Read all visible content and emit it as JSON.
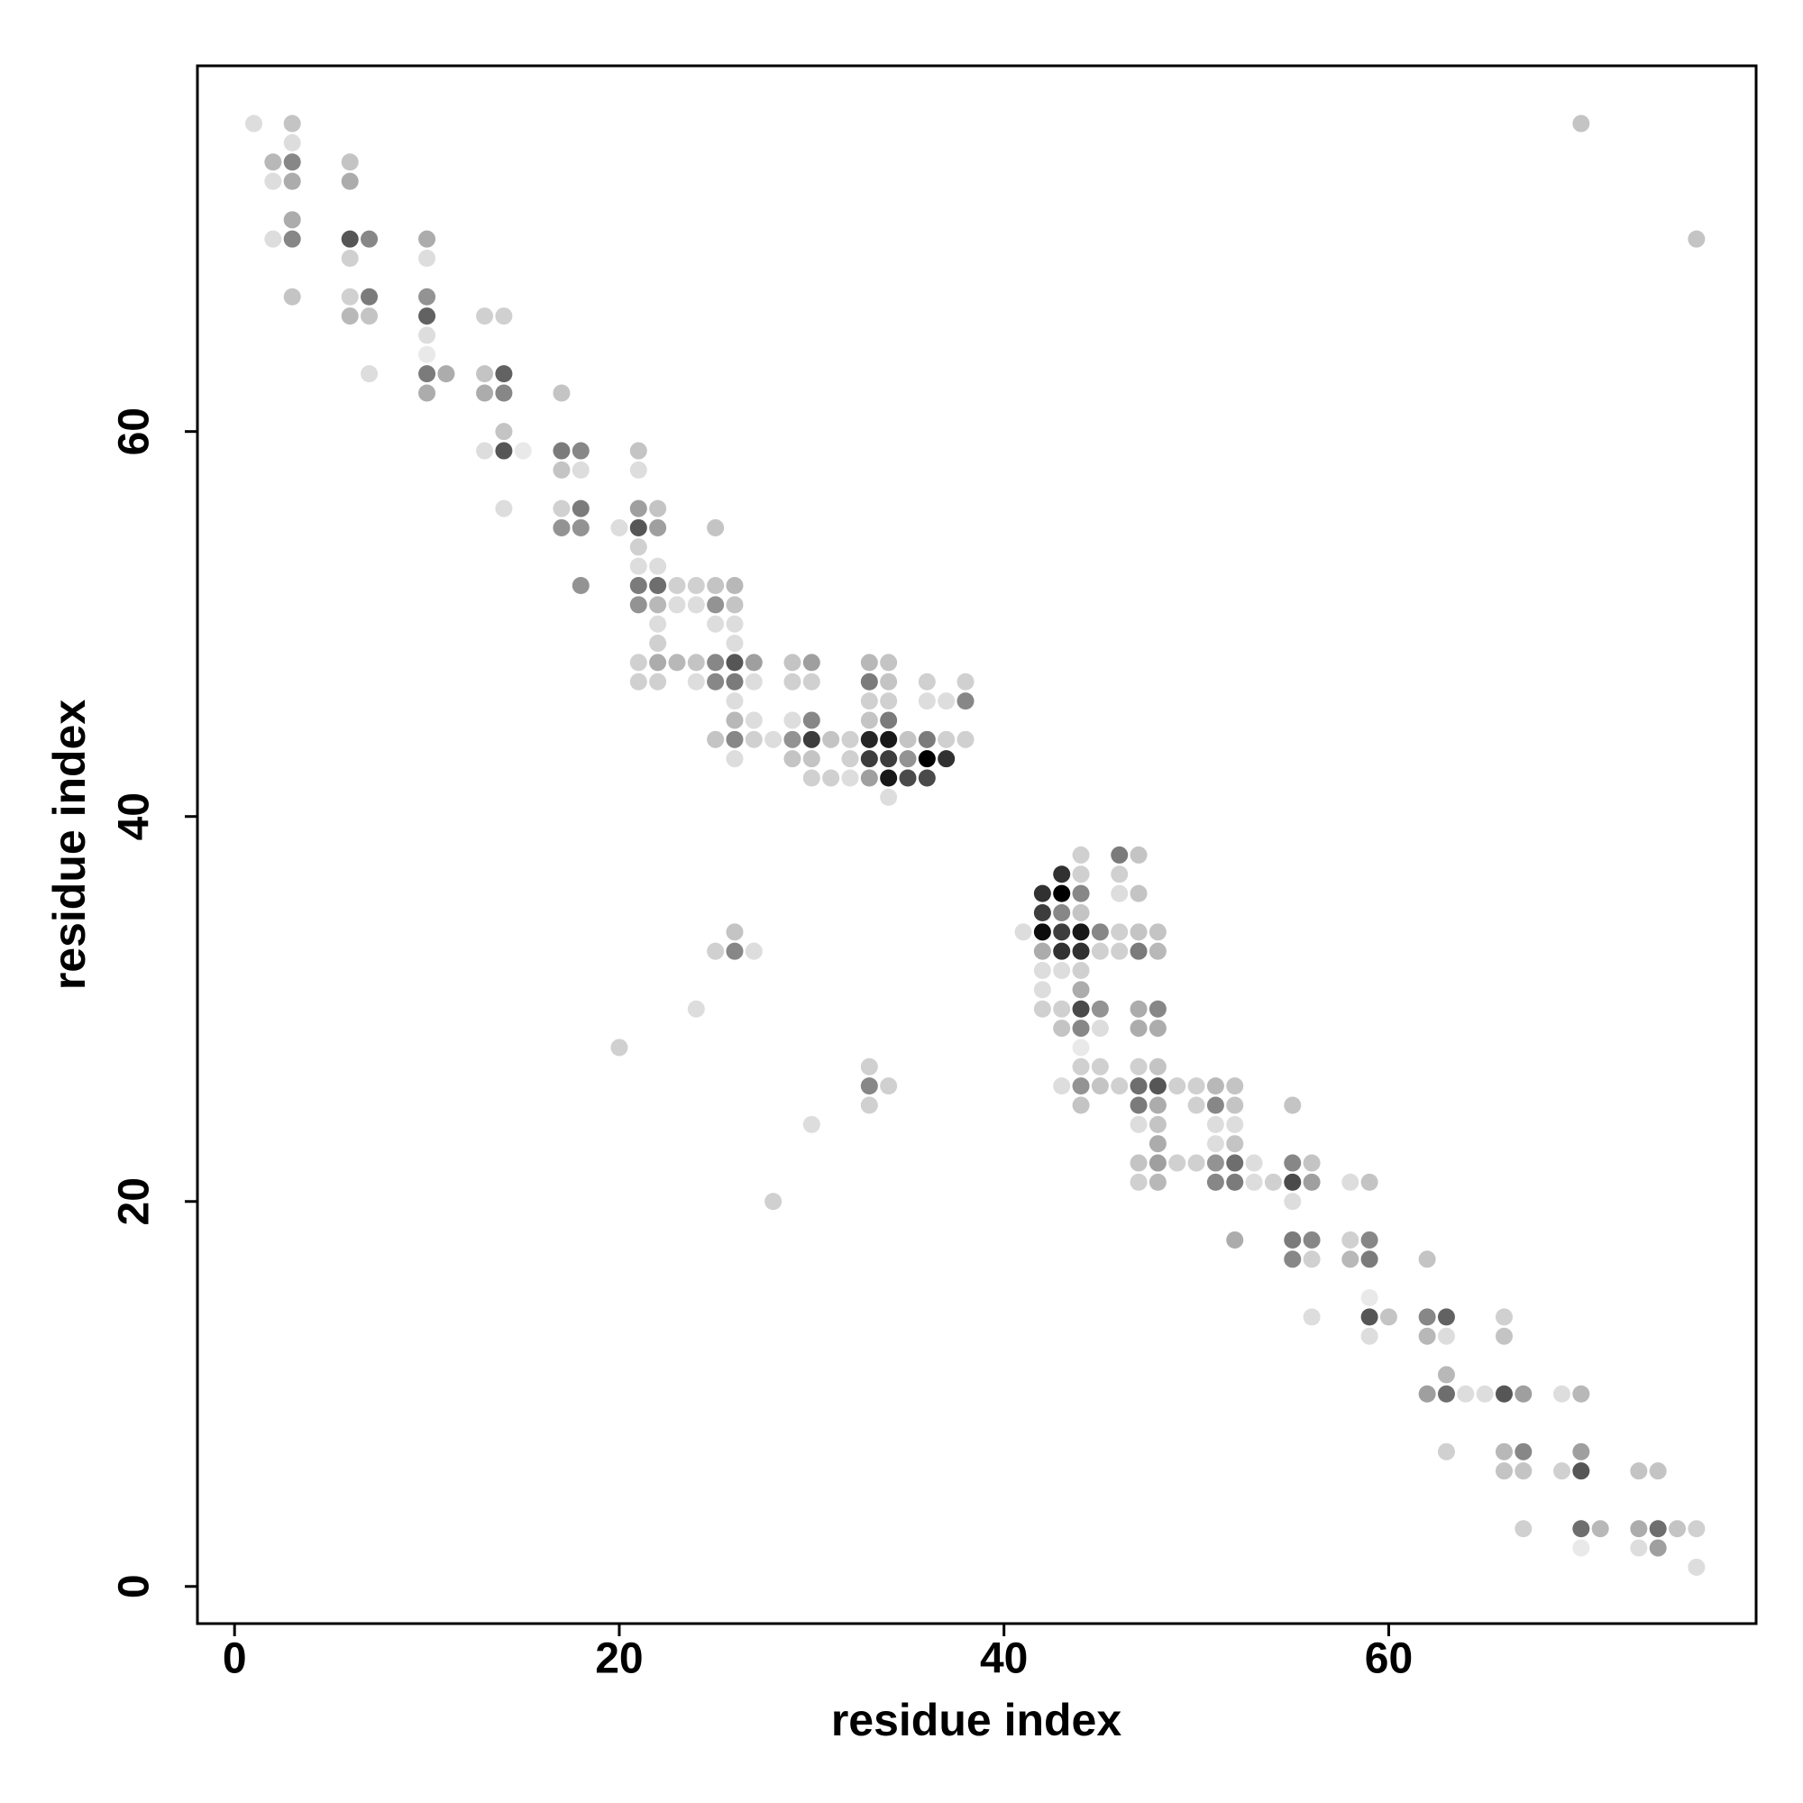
{
  "chart_data": {
    "type": "scatter",
    "xlabel": "residue index",
    "ylabel": "residue index",
    "xlim": [
      -1.93,
      79.1
    ],
    "ylim": [
      -1.93,
      79.0
    ],
    "xticks": [
      0,
      20,
      40,
      60
    ],
    "yticks": [
      0,
      20,
      40,
      60
    ],
    "color": "#000000",
    "x": [
      1,
      3,
      70,
      3,
      2,
      3,
      6,
      2,
      3,
      6,
      3,
      2,
      3,
      6,
      7,
      10,
      76,
      6,
      10,
      3,
      6,
      7,
      10,
      6,
      7,
      10,
      13,
      14,
      10,
      10,
      7,
      10,
      11,
      13,
      14,
      10,
      13,
      14,
      17,
      14,
      13,
      14,
      15,
      17,
      18,
      21,
      17,
      18,
      21,
      14,
      17,
      18,
      21,
      22,
      17,
      18,
      20,
      21,
      22,
      25,
      21,
      21,
      22,
      18,
      21,
      22,
      23,
      24,
      25,
      26,
      21,
      22,
      23,
      24,
      25,
      26,
      22,
      25,
      26,
      22,
      26,
      21,
      22,
      23,
      24,
      25,
      26,
      27,
      29,
      30,
      33,
      34,
      21,
      22,
      24,
      25,
      26,
      27,
      29,
      30,
      33,
      34,
      36,
      38,
      26,
      33,
      34,
      36,
      37,
      38,
      26,
      27,
      29,
      30,
      33,
      34,
      25,
      26,
      27,
      28,
      29,
      30,
      31,
      32,
      33,
      34,
      35,
      36,
      37,
      38,
      26,
      29,
      30,
      32,
      33,
      34,
      35,
      36,
      37,
      30,
      31,
      32,
      33,
      34,
      35,
      36,
      34,
      44,
      46,
      47,
      43,
      44,
      46,
      42,
      43,
      44,
      46,
      47,
      42,
      43,
      44,
      26,
      41,
      42,
      43,
      44,
      45,
      46,
      47,
      48,
      25,
      26,
      27,
      42,
      43,
      44,
      45,
      46,
      47,
      48,
      42,
      43,
      44,
      42,
      44,
      24,
      42,
      43,
      44,
      45,
      47,
      48,
      43,
      44,
      45,
      47,
      48,
      20,
      44,
      33,
      44,
      45,
      47,
      48,
      33,
      34,
      43,
      44,
      45,
      46,
      47,
      48,
      49,
      50,
      51,
      52,
      33,
      44,
      47,
      48,
      50,
      51,
      52,
      55,
      30,
      47,
      48,
      51,
      52,
      48,
      51,
      52,
      47,
      48,
      49,
      50,
      51,
      52,
      53,
      55,
      56,
      47,
      48,
      51,
      52,
      53,
      54,
      55,
      56,
      58,
      59,
      28,
      55,
      52,
      55,
      56,
      58,
      59,
      55,
      56,
      58,
      59,
      62,
      59,
      56,
      59,
      60,
      62,
      63,
      66,
      59,
      62,
      63,
      66,
      63,
      62,
      63,
      64,
      65,
      66,
      67,
      69,
      70,
      63,
      66,
      67,
      70,
      66,
      67,
      69,
      70,
      73,
      74,
      67,
      70,
      71,
      73,
      74,
      75,
      76,
      70,
      73,
      74,
      76
    ],
    "y": [
      76,
      76,
      76,
      75,
      74,
      74,
      74,
      73,
      73,
      73,
      71,
      70,
      70,
      70,
      70,
      70,
      70,
      69,
      69,
      67,
      67,
      67,
      67,
      66,
      66,
      66,
      66,
      66,
      65,
      64,
      63,
      63,
      63,
      63,
      63,
      62,
      62,
      62,
      62,
      60,
      59,
      59,
      59,
      59,
      59,
      59,
      58,
      58,
      58,
      56,
      56,
      56,
      56,
      56,
      55,
      55,
      55,
      55,
      55,
      55,
      54,
      53,
      53,
      52,
      52,
      52,
      52,
      52,
      52,
      52,
      51,
      51,
      51,
      51,
      51,
      51,
      50,
      50,
      50,
      49,
      49,
      48,
      48,
      48,
      48,
      48,
      48,
      48,
      48,
      48,
      48,
      48,
      47,
      47,
      47,
      47,
      47,
      47,
      47,
      47,
      47,
      47,
      47,
      47,
      46,
      46,
      46,
      46,
      46,
      46,
      45,
      45,
      45,
      45,
      45,
      45,
      44,
      44,
      44,
      44,
      44,
      44,
      44,
      44,
      44,
      44,
      44,
      44,
      44,
      44,
      43,
      43,
      43,
      43,
      43,
      43,
      43,
      43,
      43,
      42,
      42,
      42,
      42,
      42,
      42,
      42,
      41,
      38,
      38,
      38,
      37,
      37,
      37,
      36,
      36,
      36,
      36,
      36,
      35,
      35,
      35,
      34,
      34,
      34,
      34,
      34,
      34,
      34,
      34,
      34,
      33,
      33,
      33,
      33,
      33,
      33,
      33,
      33,
      33,
      33,
      32,
      32,
      32,
      31,
      31,
      30,
      30,
      30,
      30,
      30,
      30,
      30,
      29,
      29,
      29,
      29,
      29,
      28,
      28,
      27,
      27,
      27,
      27,
      27,
      26,
      26,
      26,
      26,
      26,
      26,
      26,
      26,
      26,
      26,
      26,
      26,
      25,
      25,
      25,
      25,
      25,
      25,
      25,
      25,
      24,
      24,
      24,
      24,
      24,
      23,
      23,
      23,
      22,
      22,
      22,
      22,
      22,
      22,
      22,
      22,
      22,
      21,
      21,
      21,
      21,
      21,
      21,
      21,
      21,
      21,
      21,
      20,
      20,
      18,
      18,
      18,
      18,
      18,
      17,
      17,
      17,
      17,
      17,
      15,
      14,
      14,
      14,
      14,
      14,
      14,
      13,
      13,
      13,
      13,
      11,
      10,
      10,
      10,
      10,
      10,
      10,
      10,
      10,
      7,
      7,
      7,
      7,
      6,
      6,
      6,
      6,
      6,
      6,
      3,
      3,
      3,
      3,
      3,
      3,
      3,
      2,
      2,
      2,
      1
    ],
    "intensity": [
      0.1,
      0.2,
      0.2,
      0.1,
      0.25,
      0.45,
      0.2,
      0.1,
      0.3,
      0.3,
      0.3,
      0.1,
      0.45,
      0.65,
      0.45,
      0.3,
      0.2,
      0.15,
      0.1,
      0.2,
      0.15,
      0.5,
      0.4,
      0.25,
      0.2,
      0.6,
      0.15,
      0.15,
      0.1,
      0.05,
      0.1,
      0.5,
      0.3,
      0.2,
      0.6,
      0.3,
      0.3,
      0.45,
      0.2,
      0.2,
      0.1,
      0.65,
      0.05,
      0.5,
      0.45,
      0.2,
      0.2,
      0.1,
      0.1,
      0.1,
      0.15,
      0.5,
      0.35,
      0.2,
      0.4,
      0.4,
      0.1,
      0.65,
      0.35,
      0.2,
      0.15,
      0.1,
      0.1,
      0.4,
      0.5,
      0.55,
      0.15,
      0.15,
      0.2,
      0.25,
      0.4,
      0.25,
      0.1,
      0.1,
      0.4,
      0.2,
      0.1,
      0.1,
      0.1,
      0.15,
      0.1,
      0.15,
      0.3,
      0.25,
      0.2,
      0.45,
      0.65,
      0.35,
      0.2,
      0.35,
      0.25,
      0.2,
      0.15,
      0.15,
      0.1,
      0.45,
      0.5,
      0.1,
      0.15,
      0.15,
      0.5,
      0.2,
      0.15,
      0.15,
      0.1,
      0.15,
      0.15,
      0.1,
      0.1,
      0.45,
      0.25,
      0.1,
      0.1,
      0.45,
      0.2,
      0.5,
      0.2,
      0.45,
      0.15,
      0.1,
      0.4,
      0.75,
      0.2,
      0.15,
      0.85,
      0.9,
      0.2,
      0.5,
      0.15,
      0.15,
      0.1,
      0.2,
      0.2,
      0.15,
      0.75,
      0.75,
      0.4,
      1,
      0.8,
      0.15,
      0.15,
      0.1,
      0.35,
      0.9,
      0.7,
      0.7,
      0.1,
      0.15,
      0.5,
      0.2,
      0.8,
      0.15,
      0.15,
      0.8,
      1,
      0.45,
      0.1,
      0.2,
      0.75,
      0.45,
      0.2,
      0.2,
      0.1,
      0.95,
      0.75,
      0.9,
      0.45,
      0.15,
      0.2,
      0.2,
      0.15,
      0.45,
      0.1,
      0.3,
      0.8,
      0.8,
      0.15,
      0.15,
      0.5,
      0.25,
      0.1,
      0.1,
      0.15,
      0.1,
      0.3,
      0.1,
      0.15,
      0.15,
      0.7,
      0.4,
      0.3,
      0.45,
      0.2,
      0.45,
      0.1,
      0.3,
      0.3,
      0.15,
      0.05,
      0.15,
      0.15,
      0.15,
      0.15,
      0.2,
      0.45,
      0.15,
      0.1,
      0.4,
      0.2,
      0.15,
      0.55,
      0.65,
      0.15,
      0.15,
      0.25,
      0.2,
      0.15,
      0.2,
      0.5,
      0.3,
      0.15,
      0.45,
      0.2,
      0.2,
      0.1,
      0.1,
      0.2,
      0.1,
      0.1,
      0.3,
      0.1,
      0.2,
      0.2,
      0.35,
      0.15,
      0.15,
      0.4,
      0.55,
      0.1,
      0.45,
      0.2,
      0.15,
      0.25,
      0.45,
      0.5,
      0.1,
      0.15,
      0.7,
      0.35,
      0.1,
      0.2,
      0.15,
      0.1,
      0.3,
      0.5,
      0.45,
      0.15,
      0.45,
      0.45,
      0.15,
      0.25,
      0.5,
      0.2,
      0.05,
      0.1,
      0.65,
      0.2,
      0.45,
      0.6,
      0.15,
      0.1,
      0.25,
      0.1,
      0.2,
      0.25,
      0.35,
      0.55,
      0.1,
      0.1,
      0.65,
      0.35,
      0.1,
      0.25,
      0.15,
      0.25,
      0.45,
      0.35,
      0.2,
      0.2,
      0.15,
      0.65,
      0.2,
      0.2,
      0.15,
      0.55,
      0.25,
      0.3,
      0.55,
      0.2,
      0.15,
      0.05,
      0.1,
      0.35,
      0.1
    ]
  }
}
